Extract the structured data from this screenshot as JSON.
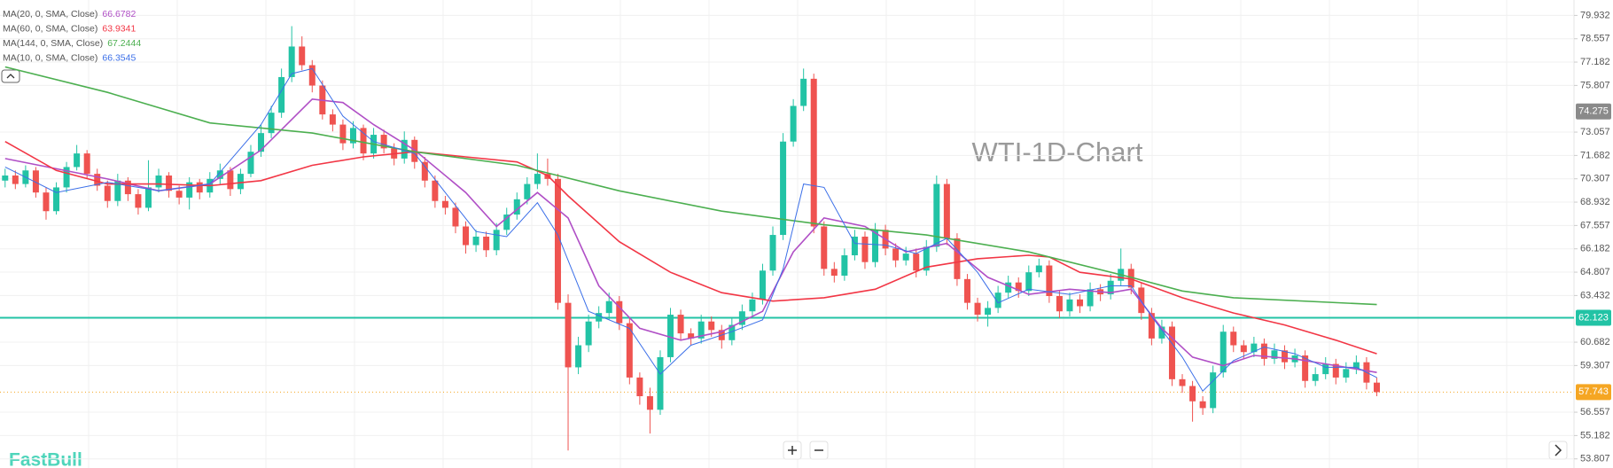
{
  "chart_data": {
    "type": "candlestick",
    "watermark": "WTI-1D-Chart",
    "brand": "FastBull",
    "up_color": "#22c3a5",
    "down_color": "#ef5350",
    "grid": true,
    "ylim": [
      53.27,
      80.84
    ],
    "yticks": [
      79.932,
      78.557,
      77.182,
      75.807,
      73.057,
      71.682,
      70.307,
      68.932,
      67.557,
      66.182,
      64.807,
      63.432,
      60.682,
      59.307,
      56.557,
      55.182,
      53.807
    ],
    "candles": [
      [
        70.2,
        70.9,
        69.8,
        70.5
      ],
      [
        70.5,
        70.8,
        69.7,
        70.0
      ],
      [
        70.0,
        71.1,
        69.8,
        70.8
      ],
      [
        70.8,
        71.0,
        69.2,
        69.5
      ],
      [
        69.5,
        69.8,
        67.9,
        68.4
      ],
      [
        68.4,
        70.1,
        68.2,
        69.8
      ],
      [
        69.8,
        71.3,
        69.5,
        71.0
      ],
      [
        71.0,
        72.3,
        70.8,
        71.8
      ],
      [
        71.8,
        72.0,
        70.3,
        70.6
      ],
      [
        70.6,
        70.9,
        69.6,
        69.9
      ],
      [
        69.9,
        70.2,
        68.6,
        69.0
      ],
      [
        69.0,
        70.6,
        68.7,
        70.2
      ],
      [
        70.2,
        70.4,
        69.0,
        69.4
      ],
      [
        69.4,
        69.7,
        68.2,
        68.6
      ],
      [
        68.6,
        71.4,
        68.4,
        69.8
      ],
      [
        69.8,
        70.9,
        69.5,
        70.5
      ],
      [
        70.5,
        70.7,
        69.2,
        69.6
      ],
      [
        69.6,
        69.9,
        68.8,
        69.2
      ],
      [
        69.2,
        70.4,
        68.5,
        70.1
      ],
      [
        70.1,
        70.3,
        69.1,
        69.5
      ],
      [
        69.5,
        70.7,
        69.2,
        70.3
      ],
      [
        70.3,
        71.2,
        70.0,
        70.8
      ],
      [
        70.8,
        71.0,
        69.3,
        69.7
      ],
      [
        69.7,
        70.9,
        69.4,
        70.6
      ],
      [
        70.6,
        72.3,
        70.4,
        71.9
      ],
      [
        71.9,
        73.5,
        71.6,
        73.0
      ],
      [
        73.0,
        74.6,
        72.7,
        74.2
      ],
      [
        74.2,
        76.8,
        73.9,
        76.3
      ],
      [
        76.3,
        79.3,
        76.0,
        78.1
      ],
      [
        78.1,
        78.7,
        76.7,
        77.0
      ],
      [
        77.0,
        77.3,
        75.4,
        75.8
      ],
      [
        75.8,
        76.1,
        73.8,
        74.1
      ],
      [
        74.1,
        74.4,
        73.1,
        73.5
      ],
      [
        73.5,
        73.8,
        72.0,
        72.4
      ],
      [
        72.4,
        73.7,
        72.1,
        73.3
      ],
      [
        73.3,
        73.5,
        71.4,
        71.8
      ],
      [
        71.8,
        73.3,
        71.5,
        72.9
      ],
      [
        72.9,
        73.2,
        71.8,
        72.1
      ],
      [
        72.1,
        72.4,
        71.1,
        71.5
      ],
      [
        71.5,
        73.1,
        71.2,
        72.6
      ],
      [
        72.6,
        72.8,
        70.9,
        71.3
      ],
      [
        71.3,
        71.6,
        69.8,
        70.2
      ],
      [
        70.2,
        70.5,
        68.6,
        69.0
      ],
      [
        69.0,
        69.3,
        68.2,
        68.6
      ],
      [
        68.6,
        68.9,
        67.1,
        67.5
      ],
      [
        67.5,
        67.8,
        65.9,
        66.4
      ],
      [
        66.4,
        67.3,
        66.0,
        66.9
      ],
      [
        66.9,
        67.2,
        65.7,
        66.1
      ],
      [
        66.1,
        67.7,
        65.8,
        67.3
      ],
      [
        67.3,
        68.6,
        67.0,
        68.2
      ],
      [
        68.2,
        69.5,
        67.9,
        69.1
      ],
      [
        69.1,
        70.4,
        68.8,
        70.0
      ],
      [
        70.0,
        71.8,
        69.7,
        70.6
      ],
      [
        70.6,
        71.5,
        69.9,
        70.3
      ],
      [
        70.3,
        70.6,
        62.6,
        63.0
      ],
      [
        63.0,
        63.5,
        54.3,
        59.2
      ],
      [
        59.2,
        61.0,
        58.8,
        60.5
      ],
      [
        60.5,
        62.3,
        60.1,
        61.9
      ],
      [
        61.9,
        62.8,
        61.5,
        62.4
      ],
      [
        62.4,
        63.6,
        62.0,
        63.1
      ],
      [
        63.1,
        63.4,
        61.4,
        61.8
      ],
      [
        61.8,
        62.1,
        58.2,
        58.6
      ],
      [
        58.6,
        58.9,
        57.0,
        57.5
      ],
      [
        57.5,
        58.0,
        55.3,
        56.7
      ],
      [
        56.7,
        60.2,
        56.4,
        59.8
      ],
      [
        59.8,
        62.7,
        59.5,
        62.3
      ],
      [
        62.3,
        62.6,
        60.8,
        61.2
      ],
      [
        61.2,
        61.5,
        60.5,
        60.9
      ],
      [
        60.9,
        62.3,
        60.6,
        61.9
      ],
      [
        61.9,
        62.2,
        61.0,
        61.4
      ],
      [
        61.4,
        61.7,
        60.3,
        60.8
      ],
      [
        60.8,
        62.1,
        60.5,
        61.7
      ],
      [
        61.7,
        62.9,
        61.4,
        62.5
      ],
      [
        62.5,
        63.6,
        62.2,
        63.2
      ],
      [
        63.2,
        65.3,
        62.9,
        64.9
      ],
      [
        64.9,
        67.5,
        64.6,
        67.0
      ],
      [
        67.0,
        73.0,
        66.7,
        72.5
      ],
      [
        72.5,
        75.0,
        72.2,
        74.6
      ],
      [
        74.6,
        76.8,
        74.3,
        76.2
      ],
      [
        76.2,
        76.5,
        67.1,
        67.5
      ],
      [
        67.5,
        67.8,
        64.6,
        65.0
      ],
      [
        65.0,
        65.4,
        64.2,
        64.6
      ],
      [
        64.6,
        66.2,
        64.3,
        65.8
      ],
      [
        65.8,
        67.3,
        65.5,
        66.9
      ],
      [
        66.9,
        67.2,
        65.0,
        65.4
      ],
      [
        65.4,
        67.7,
        65.1,
        67.3
      ],
      [
        67.3,
        67.6,
        65.8,
        66.2
      ],
      [
        66.2,
        66.5,
        65.1,
        65.5
      ],
      [
        65.5,
        66.3,
        65.2,
        65.9
      ],
      [
        65.9,
        66.2,
        64.5,
        64.9
      ],
      [
        64.9,
        66.7,
        64.6,
        66.3
      ],
      [
        66.3,
        70.5,
        66.0,
        70.0
      ],
      [
        70.0,
        70.3,
        66.4,
        66.8
      ],
      [
        66.8,
        67.1,
        64.0,
        64.4
      ],
      [
        64.4,
        64.7,
        62.6,
        63.0
      ],
      [
        63.0,
        63.3,
        61.9,
        62.3
      ],
      [
        62.3,
        63.1,
        61.6,
        62.7
      ],
      [
        62.7,
        64.0,
        62.4,
        63.6
      ],
      [
        63.6,
        64.6,
        63.3,
        64.2
      ],
      [
        64.2,
        64.5,
        63.3,
        63.7
      ],
      [
        63.7,
        65.2,
        63.4,
        64.8
      ],
      [
        64.8,
        65.6,
        64.5,
        65.2
      ],
      [
        65.2,
        65.5,
        63.0,
        63.4
      ],
      [
        63.4,
        63.7,
        62.1,
        62.5
      ],
      [
        62.5,
        63.6,
        62.2,
        63.2
      ],
      [
        63.2,
        63.5,
        62.4,
        62.8
      ],
      [
        62.8,
        64.2,
        62.5,
        63.8
      ],
      [
        63.8,
        64.1,
        63.1,
        63.5
      ],
      [
        63.5,
        64.7,
        63.2,
        64.3
      ],
      [
        64.3,
        66.2,
        64.0,
        65.0
      ],
      [
        65.0,
        65.3,
        63.5,
        63.9
      ],
      [
        63.9,
        64.2,
        62.0,
        62.4
      ],
      [
        62.4,
        62.7,
        60.5,
        60.9
      ],
      [
        60.9,
        62.0,
        60.6,
        61.6
      ],
      [
        61.6,
        61.9,
        58.1,
        58.5
      ],
      [
        58.5,
        58.8,
        57.7,
        58.1
      ],
      [
        58.1,
        58.4,
        56.0,
        57.2
      ],
      [
        57.2,
        57.5,
        56.4,
        56.8
      ],
      [
        56.8,
        59.3,
        56.5,
        58.9
      ],
      [
        58.9,
        61.7,
        58.6,
        61.3
      ],
      [
        61.3,
        61.6,
        60.1,
        60.5
      ],
      [
        60.5,
        60.8,
        59.7,
        60.1
      ],
      [
        60.1,
        61.0,
        59.8,
        60.6
      ],
      [
        60.6,
        60.9,
        59.3,
        59.7
      ],
      [
        59.7,
        60.6,
        59.4,
        60.2
      ],
      [
        60.2,
        60.5,
        59.1,
        59.5
      ],
      [
        59.5,
        60.3,
        59.2,
        59.9
      ],
      [
        59.9,
        60.2,
        58.0,
        58.4
      ],
      [
        58.4,
        59.2,
        58.1,
        58.8
      ],
      [
        58.8,
        59.8,
        58.5,
        59.4
      ],
      [
        59.4,
        59.7,
        58.2,
        58.6
      ],
      [
        58.6,
        59.5,
        58.3,
        59.1
      ],
      [
        59.1,
        59.9,
        58.8,
        59.5
      ],
      [
        59.5,
        59.8,
        57.9,
        58.3
      ],
      [
        58.3,
        58.6,
        57.5,
        57.74
      ]
    ],
    "series": [
      {
        "name": "MA(20, 0, SMA, Close)",
        "last": "66.6782",
        "color": "#b04fc6",
        "x": [
          0,
          10,
          15,
          20,
          25,
          30,
          33,
          36,
          40,
          45,
          48,
          52,
          55,
          58,
          62,
          66,
          70,
          74,
          77,
          80,
          84,
          88,
          92,
          96,
          100,
          104,
          108,
          110,
          113,
          116,
          119,
          122,
          126,
          130,
          134
        ],
        "values": [
          71.5,
          70.3,
          69.6,
          70.0,
          72.0,
          75.0,
          74.8,
          73.5,
          72.0,
          69.5,
          67.5,
          69.5,
          68.0,
          64.0,
          61.5,
          60.8,
          61.3,
          62.5,
          66.0,
          68.0,
          67.5,
          66.0,
          66.5,
          64.5,
          63.5,
          63.8,
          63.6,
          63.8,
          61.5,
          59.8,
          59.3,
          59.9,
          59.7,
          59.3,
          58.9
        ]
      },
      {
        "name": "MA(60, 0, SMA, Close)",
        "last": "63.9341",
        "color": "#f23645",
        "x": [
          0,
          5,
          10,
          15,
          20,
          25,
          30,
          35,
          40,
          45,
          50,
          53,
          55,
          60,
          65,
          70,
          75,
          80,
          85,
          90,
          95,
          100,
          102,
          105,
          110,
          115,
          120,
          125,
          130,
          134
        ],
        "values": [
          72.5,
          70.8,
          70.0,
          70.0,
          69.9,
          70.2,
          71.1,
          71.6,
          71.9,
          71.6,
          71.3,
          70.5,
          69.3,
          66.6,
          64.8,
          63.6,
          63.1,
          63.3,
          63.8,
          65.1,
          65.6,
          65.8,
          65.7,
          64.8,
          64.4,
          63.3,
          62.4,
          61.7,
          60.8,
          60.0
        ]
      },
      {
        "name": "MA(144, 0, SMA, Close)",
        "last": "67.2444",
        "color": "#4caf50",
        "x": [
          0,
          10,
          20,
          30,
          40,
          50,
          60,
          70,
          80,
          90,
          100,
          110,
          115,
          120,
          134
        ],
        "values": [
          76.9,
          75.4,
          73.6,
          73.0,
          71.9,
          71.1,
          69.6,
          68.4,
          67.6,
          67.0,
          66.0,
          64.5,
          63.7,
          63.3,
          62.9
        ]
      },
      {
        "name": "MA(10, 0, SMA, Close)",
        "last": "66.3545",
        "color": "#3b6fe8",
        "x": [
          0,
          5,
          10,
          15,
          20,
          25,
          28,
          30,
          33,
          36,
          40,
          43,
          46,
          49,
          52,
          54,
          57,
          61,
          64,
          67,
          71,
          74,
          76,
          78,
          80,
          83,
          86,
          89,
          92,
          95,
          97,
          100,
          104,
          108,
          110,
          112,
          115,
          117,
          120,
          123,
          126,
          129,
          132,
          134
        ],
        "values": [
          71.0,
          69.5,
          70.1,
          69.6,
          70.0,
          73.5,
          76.5,
          76.8,
          74.0,
          72.5,
          71.8,
          69.5,
          67.2,
          66.9,
          68.9,
          67.0,
          62.5,
          61.5,
          58.8,
          60.5,
          61.3,
          62.0,
          65.0,
          70.0,
          69.8,
          66.5,
          66.4,
          65.9,
          66.8,
          64.8,
          63.0,
          63.8,
          63.5,
          64.0,
          64.0,
          62.2,
          59.8,
          57.8,
          59.6,
          60.4,
          60.0,
          59.2,
          59.2,
          58.6
        ]
      }
    ],
    "price_labels": [
      {
        "value": 74.275,
        "color": "#8a8a8a"
      },
      {
        "value": 62.123,
        "color": "#22c3a5",
        "line": "solid"
      },
      {
        "value": 57.743,
        "color": "#f5a623",
        "line": "dotted"
      }
    ]
  }
}
